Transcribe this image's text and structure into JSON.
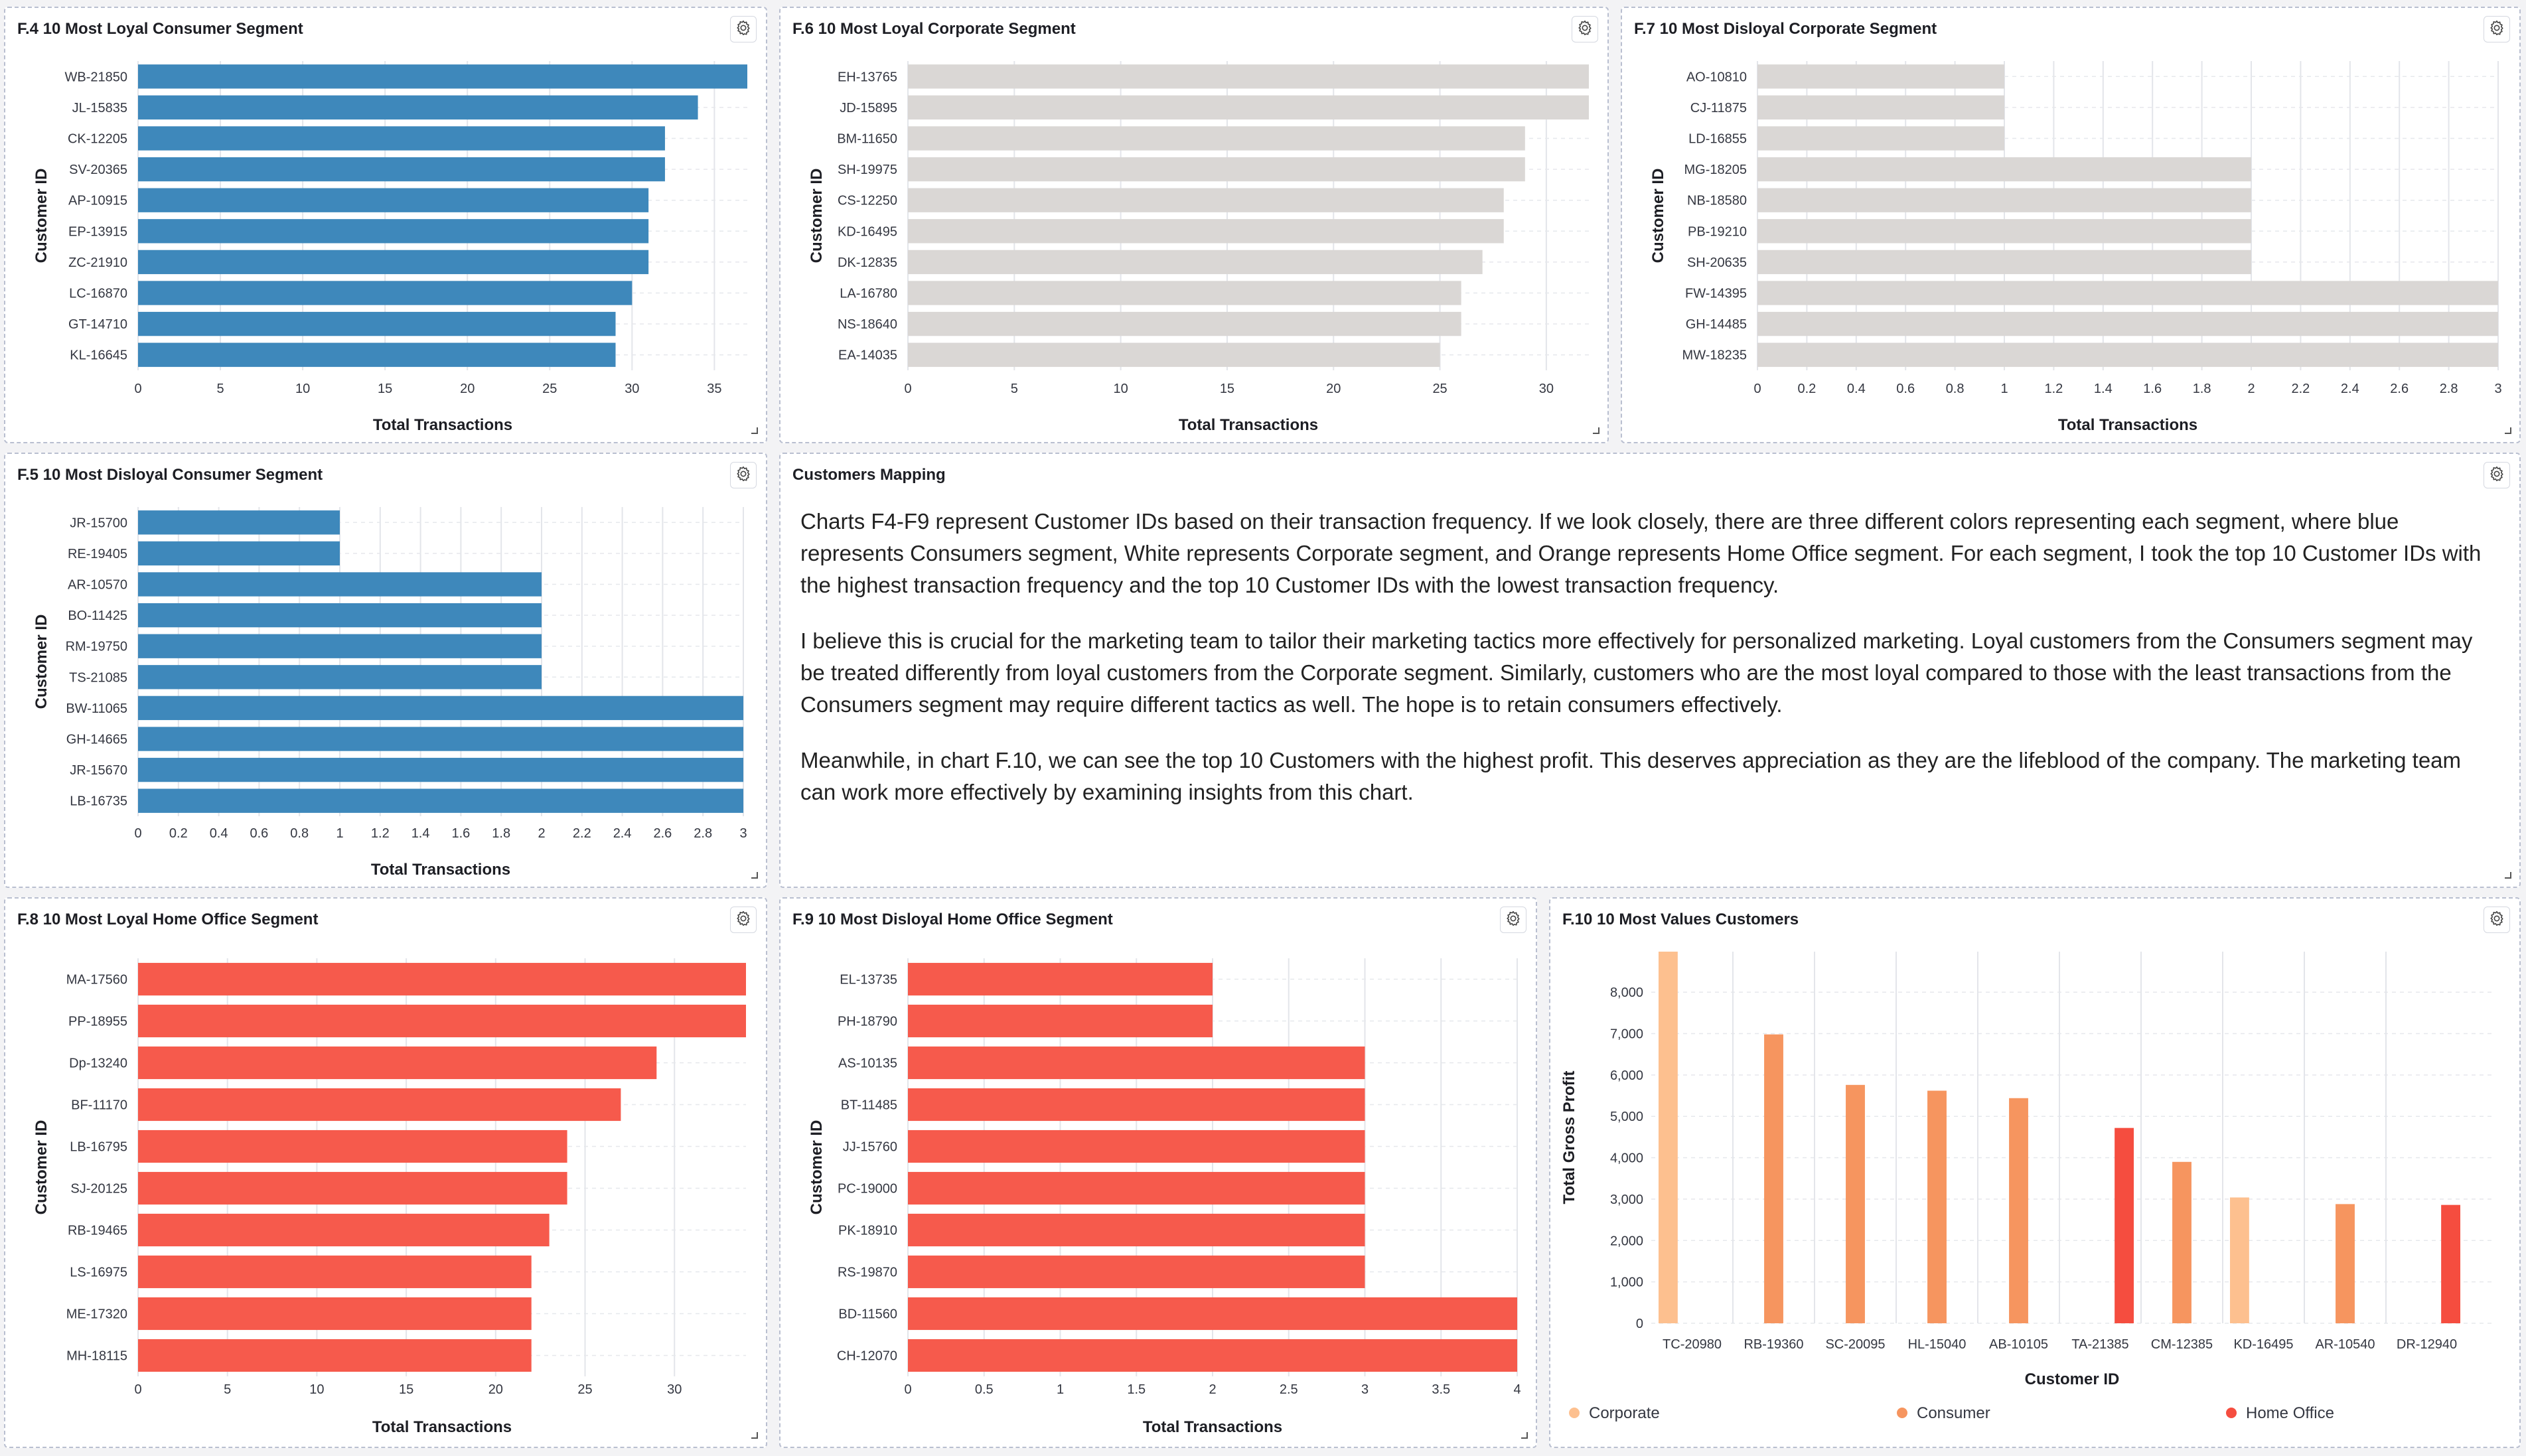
{
  "colors": {
    "consumer": "#3e88bb",
    "corporate": "#dad7d5",
    "home_office": "#f65a4c",
    "grid": "#e3e5ea",
    "text": "#333333"
  },
  "icons": {
    "settings": "gear-icon",
    "resize": "resize-handle-icon"
  },
  "charts": {
    "f4": {
      "title": "F.4 10 Most Loyal Consumer Segment",
      "chart_data": {
        "type": "bar",
        "orientation": "horizontal",
        "color": "#3e88bb",
        "categories": [
          "WB-21850",
          "JL-15835",
          "CK-12205",
          "SV-20365",
          "AP-10915",
          "EP-13915",
          "ZC-21910",
          "LC-16870",
          "GT-14710",
          "KL-16645"
        ],
        "values": [
          37,
          34,
          32,
          32,
          31,
          31,
          31,
          30,
          29,
          29
        ],
        "xlabel": "Total Transactions",
        "ylabel": "Customer ID",
        "xlim": [
          0,
          37
        ],
        "xticks": [
          0,
          5,
          10,
          15,
          20,
          25,
          30,
          35
        ]
      }
    },
    "f6": {
      "title": "F.6 10 Most Loyal Corporate Segment",
      "chart_data": {
        "type": "bar",
        "orientation": "horizontal",
        "color": "#dad7d5",
        "categories": [
          "EH-13765",
          "JD-15895",
          "BM-11650",
          "SH-19975",
          "CS-12250",
          "KD-16495",
          "DK-12835",
          "LA-16780",
          "NS-18640",
          "EA-14035"
        ],
        "values": [
          32,
          32,
          29,
          29,
          28,
          28,
          27,
          26,
          26,
          25
        ],
        "xlabel": "Total Transactions",
        "ylabel": "Customer ID",
        "xlim": [
          0,
          32
        ],
        "xticks": [
          0,
          5,
          10,
          15,
          20,
          25,
          30
        ]
      }
    },
    "f7": {
      "title": "F.7 10 Most Disloyal Corporate Segment",
      "chart_data": {
        "type": "bar",
        "orientation": "horizontal",
        "color": "#dad7d5",
        "categories": [
          "AO-10810",
          "CJ-11875",
          "LD-16855",
          "MG-18205",
          "NB-18580",
          "PB-19210",
          "SH-20635",
          "FW-14395",
          "GH-14485",
          "MW-18235"
        ],
        "values": [
          1,
          1,
          1,
          2,
          2,
          2,
          2,
          3,
          3,
          3
        ],
        "xlabel": "Total Transactions",
        "ylabel": "Customer ID",
        "xlim": [
          0,
          3
        ],
        "xticks": [
          0,
          0.2,
          0.4,
          0.6,
          0.8,
          1,
          1.2,
          1.4,
          1.6,
          1.8,
          2,
          2.2,
          2.4,
          2.6,
          2.8,
          3
        ]
      }
    },
    "f5": {
      "title": "F.5 10 Most Disloyal Consumer Segment",
      "chart_data": {
        "type": "bar",
        "orientation": "horizontal",
        "color": "#3e88bb",
        "categories": [
          "JR-15700",
          "RE-19405",
          "AR-10570",
          "BO-11425",
          "RM-19750",
          "TS-21085",
          "BW-11065",
          "GH-14665",
          "JR-15670",
          "LB-16735"
        ],
        "values": [
          1,
          1,
          2,
          2,
          2,
          2,
          3,
          3,
          3,
          3
        ],
        "xlabel": "Total Transactions",
        "ylabel": "Customer ID",
        "xlim": [
          0,
          3
        ],
        "xticks": [
          0,
          0.2,
          0.4,
          0.6,
          0.8,
          1,
          1.2,
          1.4,
          1.6,
          1.8,
          2,
          2.2,
          2.4,
          2.6,
          2.8,
          3
        ]
      }
    },
    "f8": {
      "title": "F.8 10 Most Loyal Home Office Segment",
      "chart_data": {
        "type": "bar",
        "orientation": "horizontal",
        "color": "#f65a4c",
        "categories": [
          "MA-17560",
          "PP-18955",
          "Dp-13240",
          "BF-11170",
          "LB-16795",
          "SJ-20125",
          "RB-19465",
          "LS-16975",
          "ME-17320",
          "MH-18115"
        ],
        "values": [
          34,
          34,
          29,
          27,
          24,
          24,
          23,
          22,
          22,
          22
        ],
        "xlabel": "Total Transactions",
        "ylabel": "Customer ID",
        "xlim": [
          0,
          34
        ],
        "xticks": [
          0,
          5,
          10,
          15,
          20,
          25,
          30
        ]
      }
    },
    "f9": {
      "title": "F.9 10 Most Disloyal Home Office Segment",
      "chart_data": {
        "type": "bar",
        "orientation": "horizontal",
        "color": "#f65a4c",
        "categories": [
          "EL-13735",
          "PH-18790",
          "AS-10135",
          "BT-11485",
          "JJ-15760",
          "PC-19000",
          "PK-18910",
          "RS-19870",
          "BD-11560",
          "CH-12070"
        ],
        "values": [
          2,
          2,
          3,
          3,
          3,
          3,
          3,
          3,
          4,
          4
        ],
        "xlabel": "Total Transactions",
        "ylabel": "Customer ID",
        "xlim": [
          0,
          4
        ],
        "xticks": [
          0,
          0.5,
          1,
          1.5,
          2,
          2.5,
          3,
          3.5,
          4
        ]
      }
    },
    "f10": {
      "title": "F.10 10 Most Values Customers",
      "chart_data": {
        "type": "bar",
        "orientation": "vertical",
        "categories": [
          "TC-20980",
          "RB-19360",
          "SC-20095",
          "HL-15040",
          "AB-10105",
          "TA-21385",
          "CM-12385",
          "KD-16495",
          "AR-10540",
          "DR-12940"
        ],
        "series": [
          {
            "name": "Corporate",
            "color": "#fdc08f",
            "values": [
              8980,
              null,
              null,
              null,
              null,
              null,
              null,
              3040,
              null,
              null
            ]
          },
          {
            "name": "Consumer",
            "color": "#f6955f",
            "values": [
              null,
              6980,
              5760,
              5620,
              5440,
              null,
              3900,
              null,
              2880,
              null
            ]
          },
          {
            "name": "Home Office",
            "color": "#f54d3f",
            "values": [
              null,
              null,
              null,
              null,
              null,
              4720,
              null,
              null,
              null,
              2860
            ]
          }
        ],
        "xlabel": "Customer ID",
        "ylabel": "Total Gross Profit",
        "ylim": [
          0,
          8980
        ],
        "yticks": [
          0,
          1000,
          2000,
          3000,
          4000,
          5000,
          6000,
          7000,
          8000
        ],
        "ytick_labels": [
          "0",
          "1,000",
          "2,000",
          "3,000",
          "4,000",
          "5,000",
          "6,000",
          "7,000",
          "8,000"
        ],
        "legend_position": "bottom"
      }
    }
  },
  "mapping": {
    "title": "Customers Mapping",
    "paragraphs": [
      "Charts F4-F9 represent Customer IDs based on their transaction frequency. If we look closely, there are three different colors representing each segment, where blue represents Consumers segment, White represents Corporate segment, and Orange represents Home Office segment. For each segment, I took the top 10 Customer IDs with the highest transaction frequency and the top 10 Customer IDs with the lowest transaction frequency.",
      "I believe this is crucial for the marketing team to tailor their marketing tactics more effectively for personalized marketing. Loyal customers from the Consumers segment may be treated differently from loyal customers from the Corporate segment. Similarly, customers who are the most loyal compared to those with the least transactions from the Consumers segment may require different tactics as well. The hope is to retain consumers effectively.",
      "Meanwhile, in chart F.10, we can see the top 10 Customers with the highest profit. This deserves appreciation as they are the lifeblood of the company. The marketing team can work more effectively by examining insights from this chart."
    ]
  }
}
